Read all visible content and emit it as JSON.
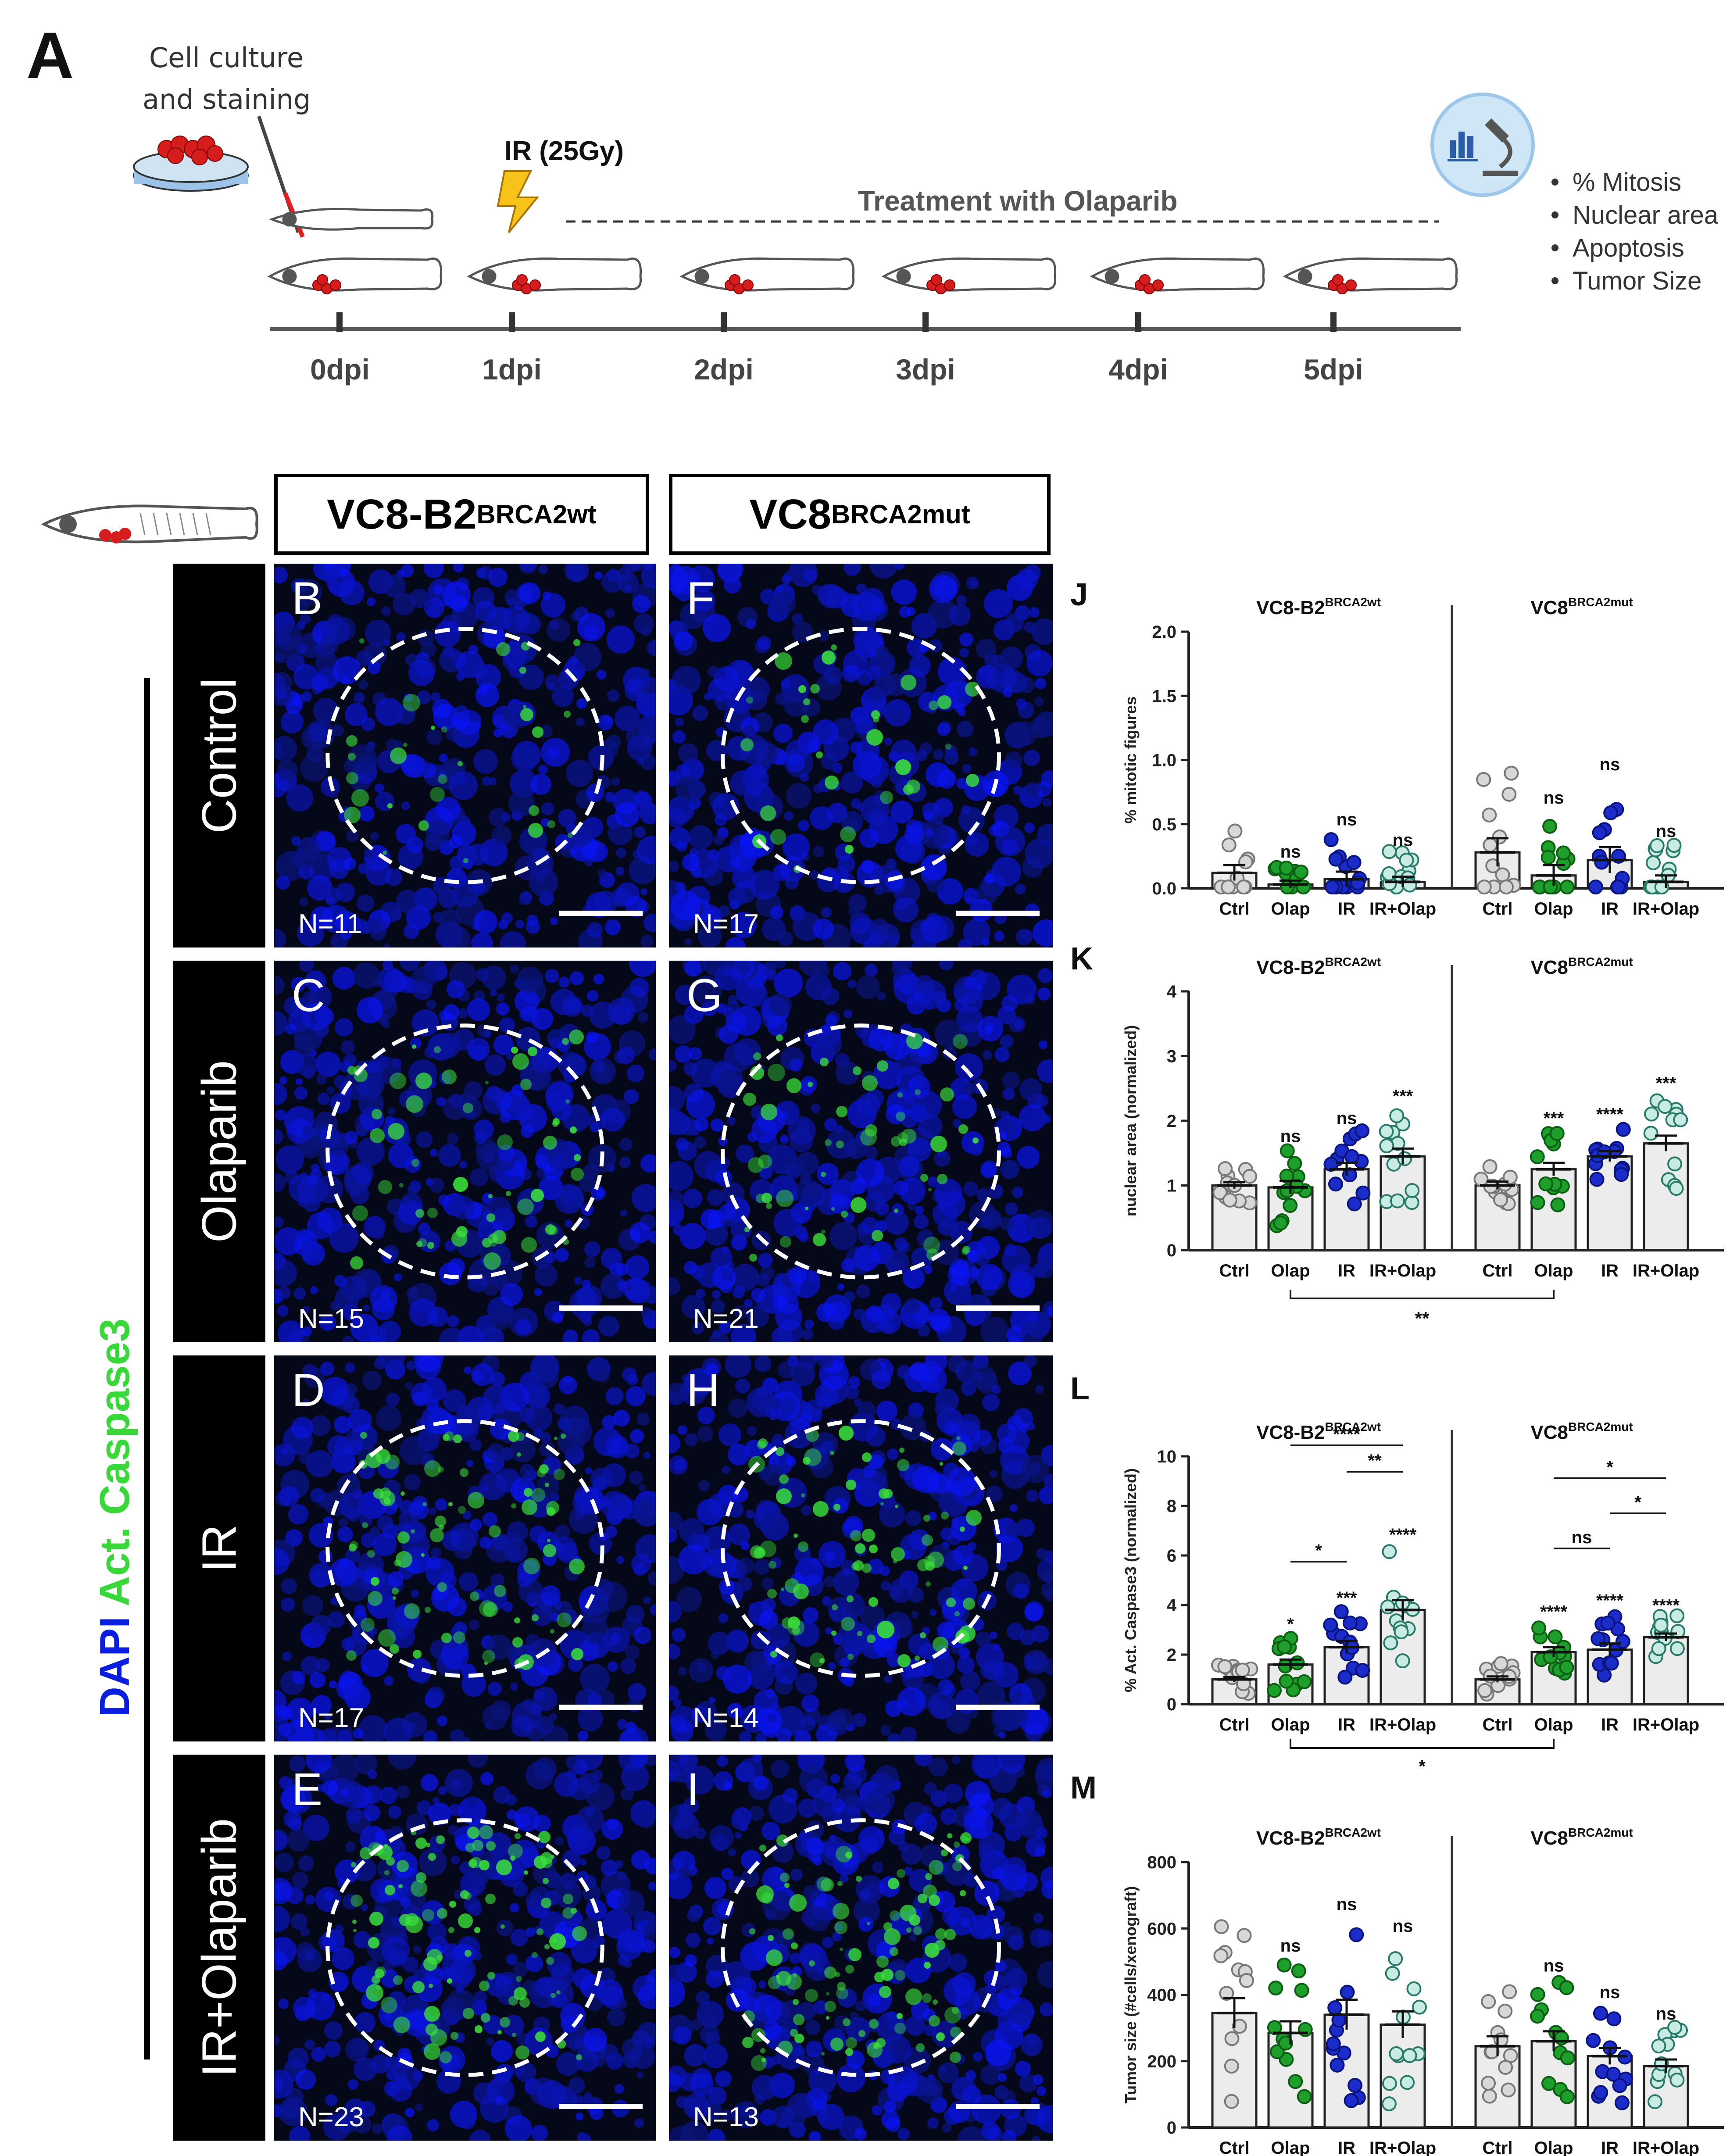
{
  "panel_a": {
    "letter": "A",
    "culture_label_1": "Cell culture",
    "culture_label_2": "and staining",
    "ir_label": "IR (25Gy)",
    "treatment_label": "Treatment with Olaparib",
    "timepoints": [
      "0dpi",
      "1dpi",
      "2dpi",
      "3dpi",
      "4dpi",
      "5dpi"
    ],
    "readouts": [
      "% Mitosis",
      "Nuclear area",
      "Apoptosis",
      "Tumor Size"
    ],
    "icon": "microscope-analysis-icon"
  },
  "images": {
    "col_headers": [
      {
        "name": "VC8-B2",
        "sup": "BRCA2wt"
      },
      {
        "name": "VC8",
        "sup": "BRCA2mut"
      }
    ],
    "side_label": {
      "dapi": "DAPI",
      "act": "Act. Caspase3"
    },
    "rows": [
      {
        "label": "Control",
        "left": {
          "letter": "B",
          "n": "N=11"
        },
        "right": {
          "letter": "F",
          "n": "N=17"
        }
      },
      {
        "label": "Olaparib",
        "left": {
          "letter": "C",
          "n": "N=15"
        },
        "right": {
          "letter": "G",
          "n": "N=21"
        }
      },
      {
        "label": "IR",
        "left": {
          "letter": "D",
          "n": "N=17"
        },
        "right": {
          "letter": "H",
          "n": "N=14"
        }
      },
      {
        "label": "IR+Olaparib",
        "left": {
          "letter": "E",
          "n": "N=23"
        },
        "right": {
          "letter": "I",
          "n": "N=13"
        }
      }
    ]
  },
  "colors": {
    "ctrl": "#d8d8d8",
    "olap": "#1e9e2a",
    "ir": "#1c2cc9",
    "irolap": "#c8ece4",
    "dapi": "#0a1ee0",
    "caspase": "#38d838"
  },
  "chart_data": [
    {
      "id": "J",
      "type": "bar",
      "ylabel": "% mitotic figures",
      "ylim": [
        0,
        2.0
      ],
      "yticks": [
        "0.0",
        "0.5",
        "1.0",
        "1.5",
        "2.0"
      ],
      "groups": [
        {
          "name": "VC8-B2",
          "sup": "BRCA2wt"
        },
        {
          "name": "VC8",
          "sup": "BRCA2mut"
        }
      ],
      "categories": [
        "Ctrl",
        "Olap",
        "IR",
        "IR+Olap"
      ],
      "series": [
        {
          "group": "VC8-B2",
          "values": [
            0.12,
            0.03,
            0.07,
            0.05
          ],
          "sem": [
            0.06,
            0.03,
            0.06,
            0.04
          ],
          "sig": [
            "",
            "ns",
            "ns",
            "ns"
          ]
        },
        {
          "group": "VC8",
          "values": [
            0.28,
            0.1,
            0.22,
            0.05
          ],
          "sem": [
            0.11,
            0.08,
            0.1,
            0.05
          ],
          "sig": [
            "",
            "ns",
            "ns",
            "ns"
          ]
        }
      ],
      "comparisons": []
    },
    {
      "id": "K",
      "type": "bar",
      "ylabel": "nuclear area (normalized)",
      "ylim": [
        0,
        4
      ],
      "yticks": [
        "0",
        "1",
        "2",
        "3",
        "4"
      ],
      "groups": [
        {
          "name": "VC8-B2",
          "sup": "BRCA2wt"
        },
        {
          "name": "VC8",
          "sup": "BRCA2mut"
        }
      ],
      "categories": [
        "Ctrl",
        "Olap",
        "IR",
        "IR+Olap"
      ],
      "series": [
        {
          "group": "VC8-B2",
          "values": [
            1.0,
            0.97,
            1.25,
            1.45
          ],
          "sem": [
            0.05,
            0.1,
            0.1,
            0.12
          ],
          "sig": [
            "",
            "ns",
            "ns",
            "***"
          ]
        },
        {
          "group": "VC8",
          "values": [
            1.0,
            1.25,
            1.45,
            1.65
          ],
          "sem": [
            0.06,
            0.1,
            0.08,
            0.12
          ],
          "sig": [
            "",
            "***",
            "****",
            "***"
          ]
        }
      ],
      "comparisons": [
        {
          "label": "**",
          "below": true
        }
      ]
    },
    {
      "id": "L",
      "type": "bar",
      "ylabel": "% Act. Caspase3 (normalized)",
      "ylim": [
        0,
        10
      ],
      "yticks": [
        "0",
        "2",
        "4",
        "6",
        "8",
        "10"
      ],
      "groups": [
        {
          "name": "VC8-B2",
          "sup": "BRCA2wt"
        },
        {
          "name": "VC8",
          "sup": "BRCA2mut"
        }
      ],
      "categories": [
        "Ctrl",
        "Olap",
        "IR",
        "IR+Olap"
      ],
      "series": [
        {
          "group": "VC8-B2",
          "values": [
            1.0,
            1.6,
            2.3,
            3.8
          ],
          "sem": [
            0.1,
            0.2,
            0.25,
            0.4
          ],
          "sig": [
            "",
            "*",
            "***",
            "****"
          ]
        },
        {
          "group": "VC8",
          "values": [
            1.0,
            2.1,
            2.2,
            2.7
          ],
          "sem": [
            0.12,
            0.2,
            0.25,
            0.15
          ],
          "sig": [
            "",
            "****",
            "****",
            "****"
          ]
        }
      ],
      "comparisons": [
        {
          "label": "****"
        },
        {
          "label": "**"
        },
        {
          "label": "*"
        },
        {
          "label": "*"
        },
        {
          "label": "*"
        },
        {
          "label": "ns"
        },
        {
          "label": "*",
          "below": true
        }
      ]
    },
    {
      "id": "M",
      "type": "bar",
      "ylabel": "Tumor size (#cells/xenograft)",
      "ylim": [
        0,
        800
      ],
      "yticks": [
        "0",
        "200",
        "400",
        "600",
        "800"
      ],
      "groups": [
        {
          "name": "VC8-B2",
          "sup": "BRCA2wt"
        },
        {
          "name": "VC8",
          "sup": "BRCA2mut"
        }
      ],
      "categories": [
        "Ctrl",
        "Olap",
        "IR",
        "IR+Olap"
      ],
      "series": [
        {
          "group": "VC8-B2",
          "values": [
            345,
            285,
            340,
            310
          ],
          "sem": [
            45,
            35,
            45,
            40
          ],
          "sig": [
            "",
            "ns",
            "ns",
            "ns"
          ]
        },
        {
          "group": "VC8",
          "values": [
            245,
            260,
            215,
            185
          ],
          "sem": [
            30,
            30,
            25,
            20
          ],
          "sig": [
            "",
            "ns",
            "ns",
            "ns"
          ]
        }
      ],
      "comparisons": []
    }
  ]
}
